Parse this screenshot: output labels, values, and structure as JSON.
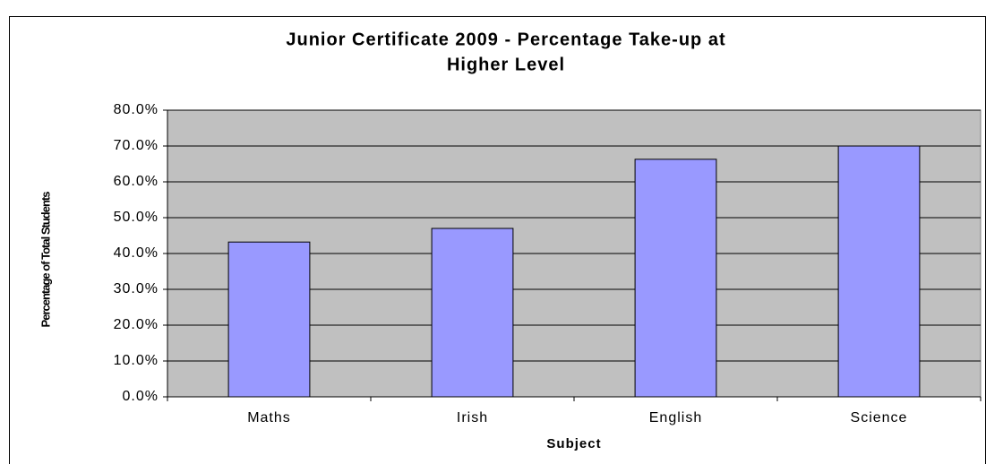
{
  "chart_data": {
    "type": "bar",
    "title": [
      "Junior Certificate 2009 - Percentage Take-up at",
      "Higher Level"
    ],
    "x_label": "Subject",
    "y_label": "Percentage of Total Students",
    "categories": [
      "Maths",
      "Irish",
      "English",
      "Science"
    ],
    "values": [
      43.2,
      47.0,
      66.3,
      70.0
    ],
    "color": "#9999ff",
    "ylim": [
      0,
      80
    ],
    "yticks": [
      {
        "value": 0,
        "label": "0.0%"
      },
      {
        "value": 10,
        "label": "10.0%"
      },
      {
        "value": 20,
        "label": "20.0%"
      },
      {
        "value": 30,
        "label": "30.0%"
      },
      {
        "value": 40,
        "label": "40.0%"
      },
      {
        "value": 50,
        "label": "50.0%"
      },
      {
        "value": 60,
        "label": "60.0%"
      },
      {
        "value": 70,
        "label": "70.0%"
      },
      {
        "value": 80,
        "label": "80.0%"
      }
    ],
    "grid": true
  }
}
